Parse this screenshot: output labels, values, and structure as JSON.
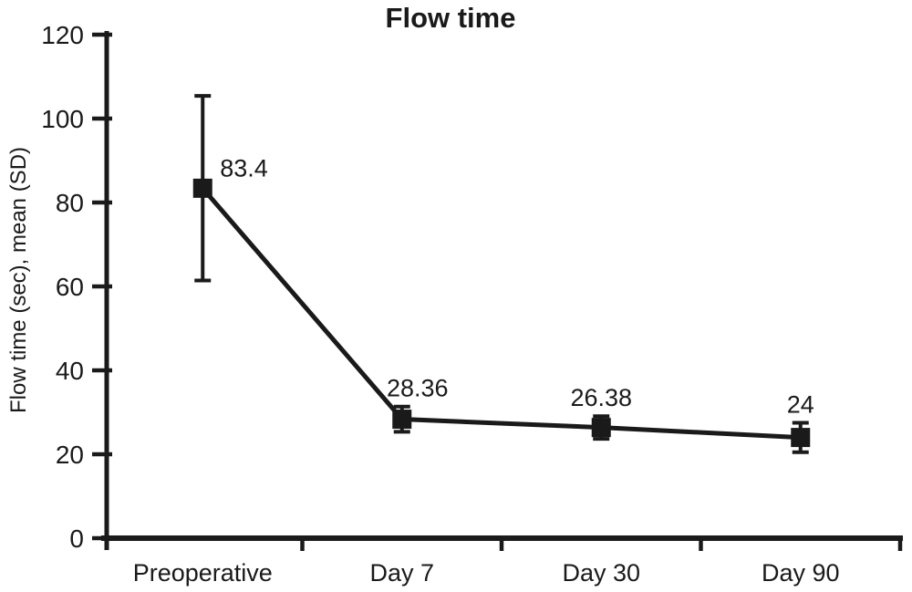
{
  "chart_data": {
    "type": "line",
    "title": "Flow time",
    "ylabel": "Flow time (sec), mean (SD)",
    "xlabel": "",
    "categories": [
      "Preoperative",
      "Day 7",
      "Day 30",
      "Day 90"
    ],
    "series": [
      {
        "name": "Flow time",
        "values": [
          83.4,
          28.36,
          26.38,
          24
        ],
        "sd": [
          22,
          3,
          2.7,
          3.5
        ]
      }
    ],
    "data_labels": [
      "83.4",
      "28.36",
      "26.38",
      "24"
    ],
    "ylim": [
      0,
      120
    ],
    "yticks": [
      0,
      20,
      40,
      60,
      80,
      100,
      120
    ],
    "grid": false,
    "legend": "none",
    "marker": "square",
    "line_color": "#1a1a1a",
    "background": "#ffffff"
  }
}
